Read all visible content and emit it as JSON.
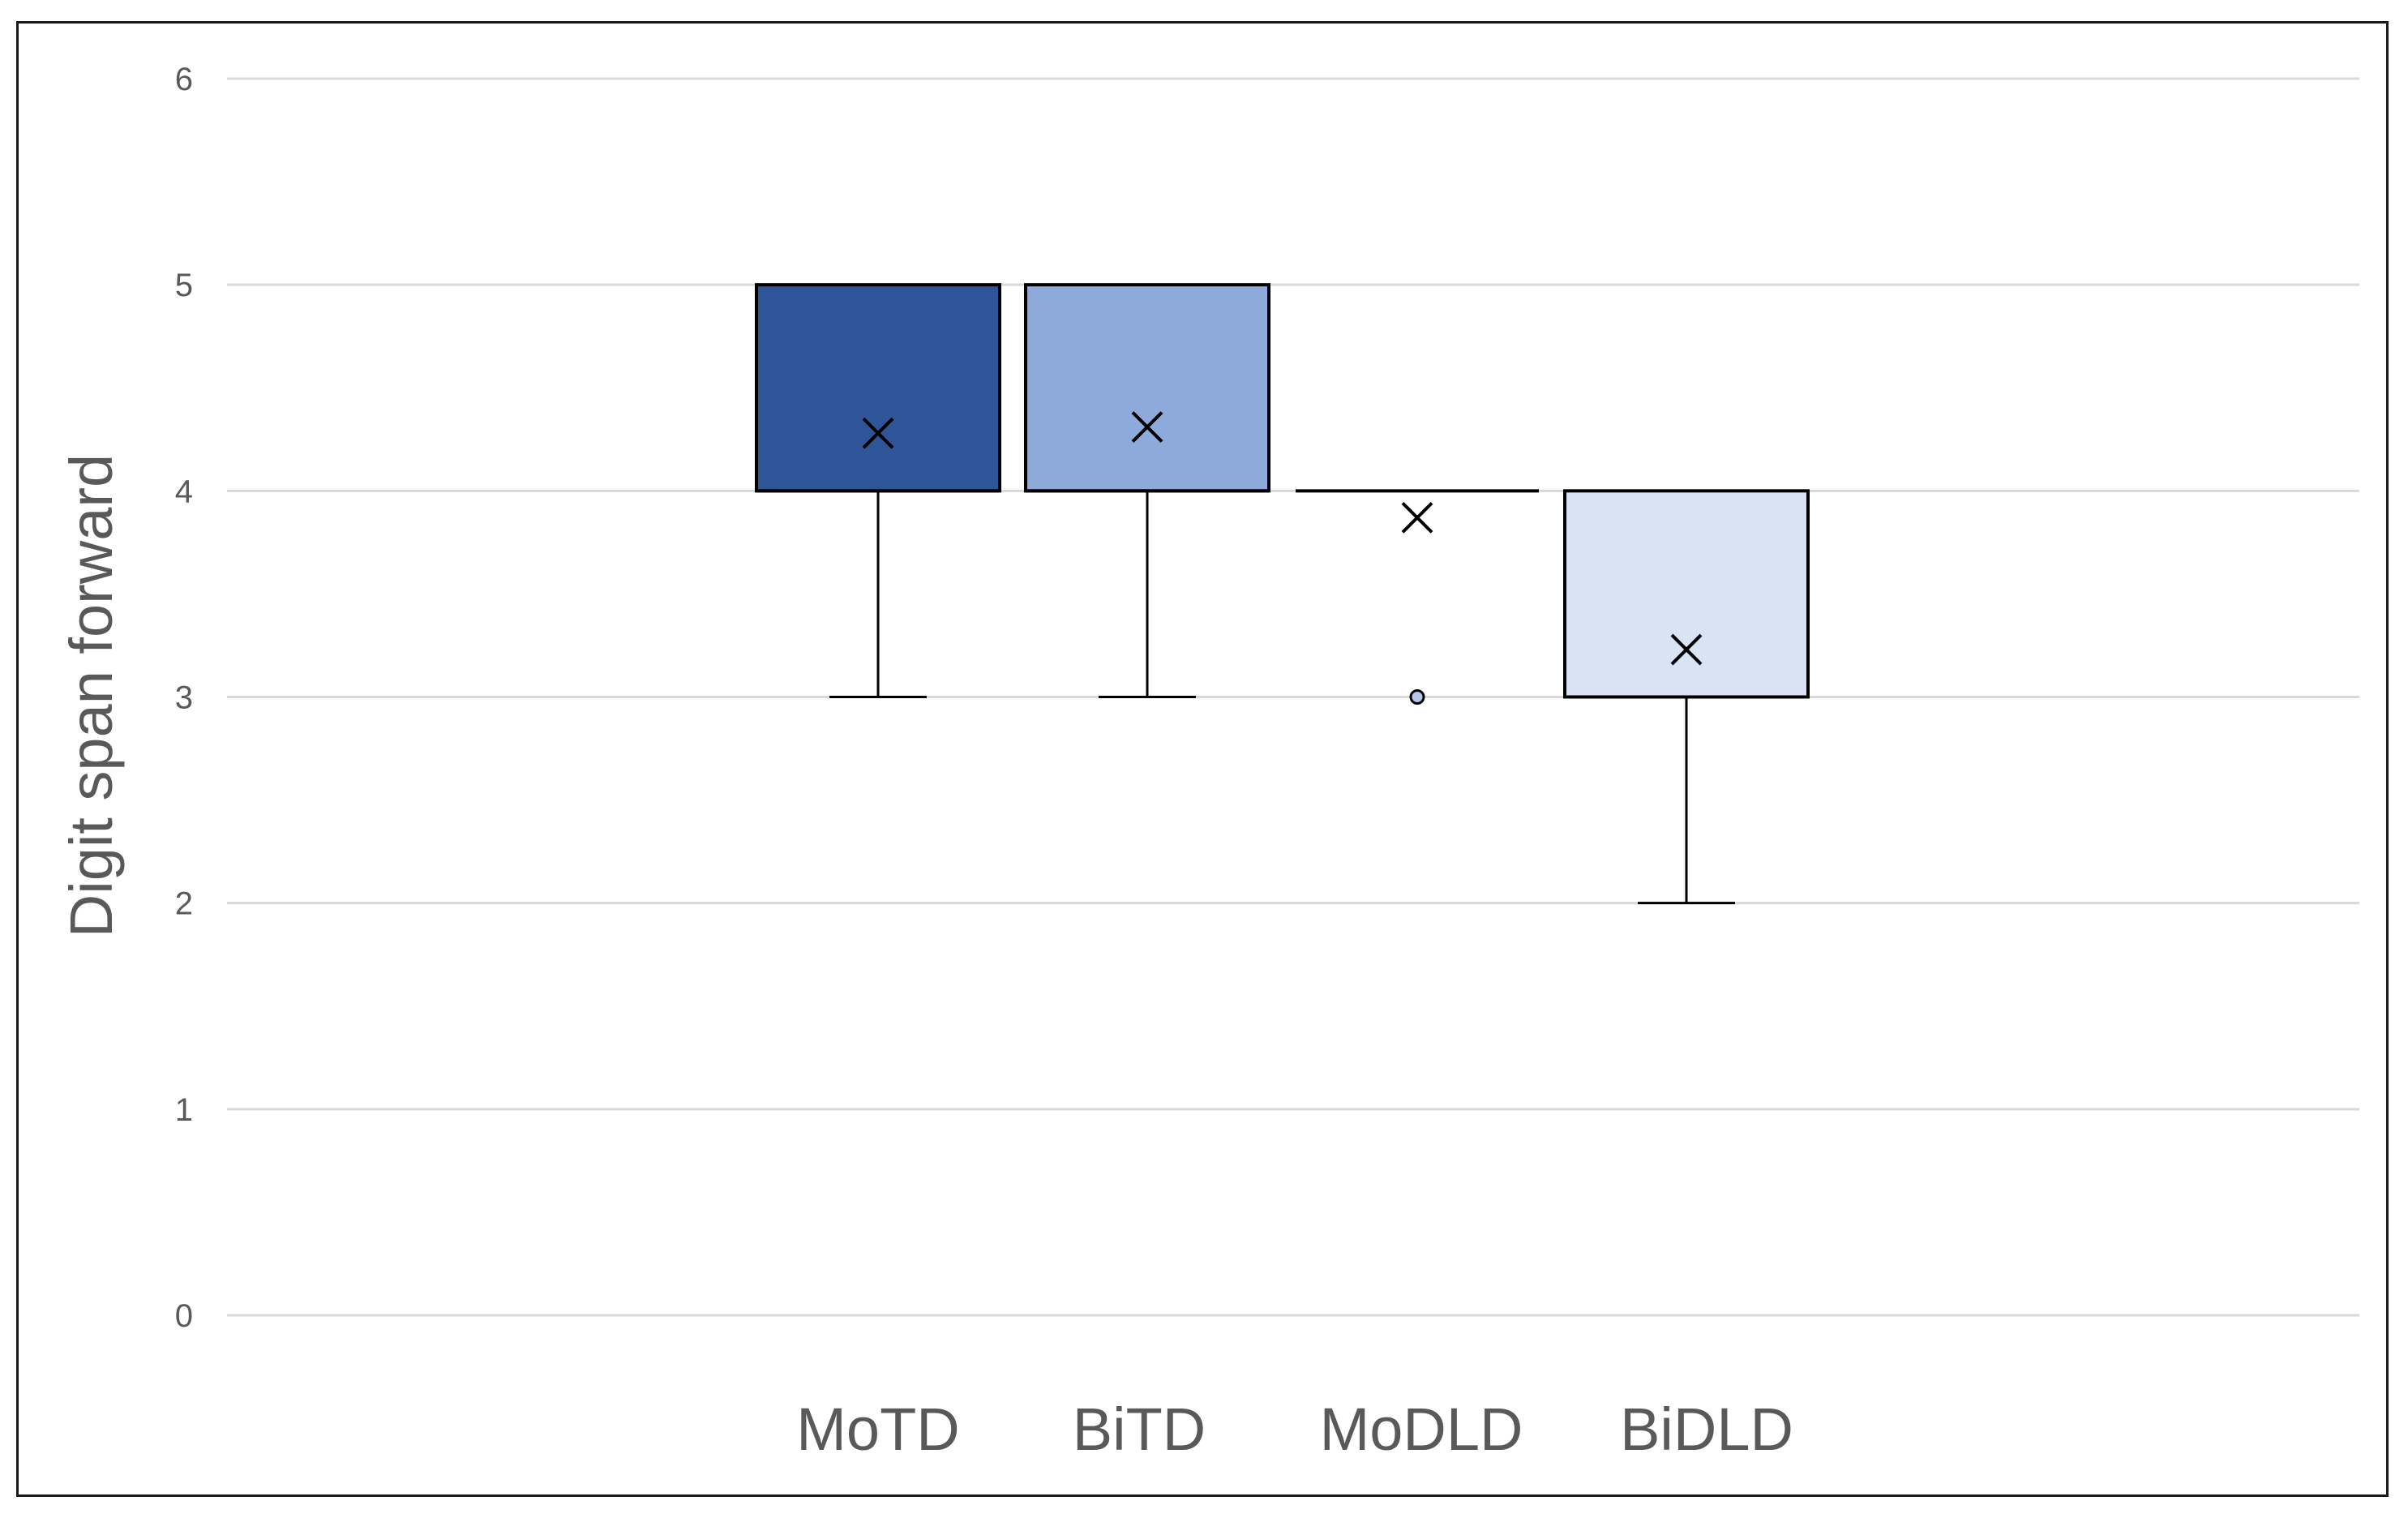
{
  "chart_data": {
    "type": "box",
    "title": "",
    "xlabel": "",
    "ylabel": "Digit span forward",
    "ylim": [
      0,
      6
    ],
    "yticks": [
      "0",
      "1",
      "2",
      "3",
      "4",
      "5",
      "6"
    ],
    "grid": true,
    "legend": "none",
    "categories": [
      "MoTD",
      "BiTD",
      "MoDLD",
      "BiDLD"
    ],
    "boxes": [
      {
        "category": "MoTD",
        "min": 3,
        "q1": 4,
        "median": 4,
        "q3": 5,
        "max": 5,
        "mean": 4.28,
        "outliers": [],
        "color": "#2e5597"
      },
      {
        "category": "BiTD",
        "min": 3,
        "q1": 4,
        "median": 4,
        "q3": 5,
        "max": 5,
        "mean": 4.31,
        "outliers": [],
        "color": "#8eaadb"
      },
      {
        "category": "MoDLD",
        "min": 4,
        "q1": 4,
        "median": 4,
        "q3": 4,
        "max": 4,
        "mean": 3.87,
        "outliers": [
          3
        ],
        "color": "#b4c7e7"
      },
      {
        "category": "BiDLD",
        "min": 2,
        "q1": 3,
        "median": 3,
        "q3": 4,
        "max": 4,
        "mean": 3.23,
        "outliers": [],
        "color": "#dae3f3"
      }
    ]
  }
}
